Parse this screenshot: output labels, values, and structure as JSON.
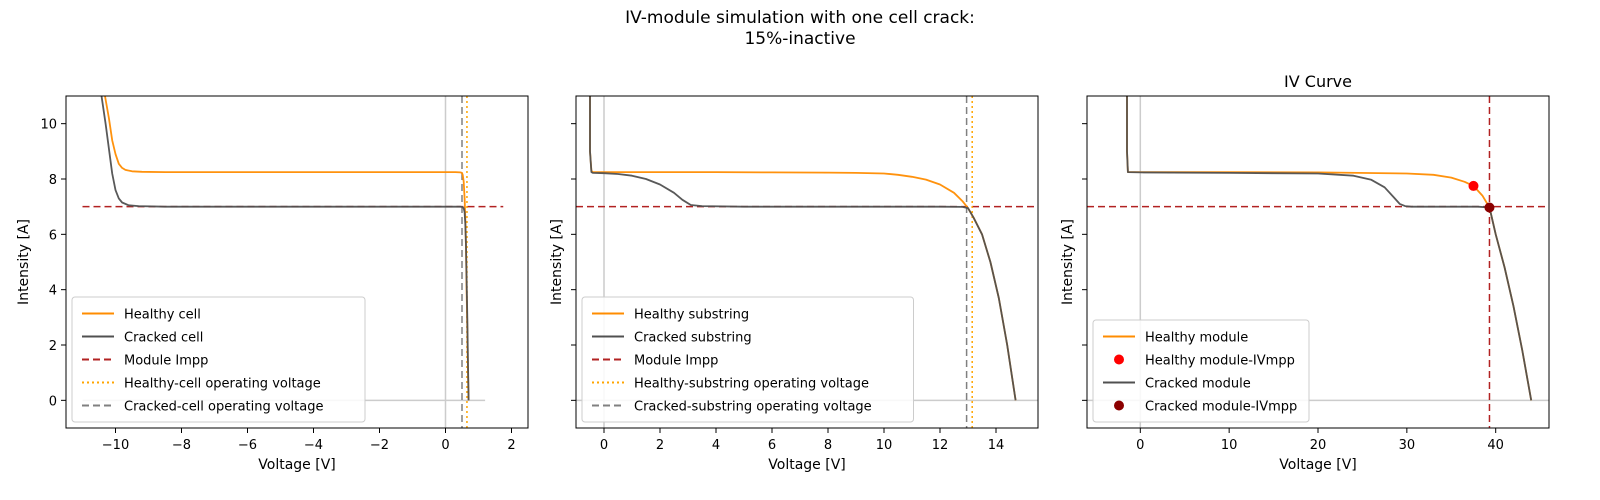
{
  "suptitle": {
    "line1": "IV-module simulation with one cell crack:",
    "line2": "15%-inactive"
  },
  "colors": {
    "healthy": "#ff8c00",
    "cracked": "#505050",
    "impp": "#b22222",
    "healthy_op_voltage": "#ffa500",
    "cracked_op_voltage": "#808080",
    "healthy_mpp_marker": "#ff0000",
    "cracked_mpp_marker": "#8b0000",
    "axis_zero_line": "#cccccc"
  },
  "chart_data": [
    {
      "type": "line",
      "title": "",
      "xlabel": "Voltage [V]",
      "ylabel": "Intensity [A]",
      "xlim": [
        -11.5,
        2.5
      ],
      "ylim": [
        -1,
        11
      ],
      "xticks": [
        -10,
        -8,
        -6,
        -4,
        -2,
        0,
        2
      ],
      "yticks": [
        0,
        2,
        4,
        6,
        8,
        10
      ],
      "zero_lines": {
        "x": 0,
        "y": 0,
        "y_line_x_range": [
          -11,
          1.2
        ]
      },
      "series": [
        {
          "name": "Healthy cell",
          "style": "solid",
          "color": "#ff8c00",
          "x": [
            -10.35,
            -10.2,
            -10.1,
            -10.0,
            -9.9,
            -9.8,
            -9.7,
            -9.5,
            -9.2,
            -8.5,
            -6,
            -2,
            0,
            0.3,
            0.45,
            0.5,
            0.52,
            0.55,
            0.58,
            0.6,
            0.62,
            0.64,
            0.66,
            0.68,
            0.7
          ],
          "y": [
            11.2,
            10.2,
            9.4,
            8.9,
            8.55,
            8.4,
            8.33,
            8.28,
            8.26,
            8.25,
            8.25,
            8.25,
            8.25,
            8.25,
            8.24,
            8.22,
            8.15,
            7.9,
            7.3,
            6.6,
            5.5,
            4.0,
            2.6,
            1.2,
            0.0
          ]
        },
        {
          "name": "Cracked cell",
          "style": "solid",
          "color": "#505050",
          "x": [
            -10.45,
            -10.3,
            -10.2,
            -10.1,
            -10.0,
            -9.9,
            -9.8,
            -9.6,
            -9.3,
            -8.5,
            -6,
            -2,
            0,
            0.3,
            0.45,
            0.5,
            0.55,
            0.58,
            0.6,
            0.62,
            0.64,
            0.66,
            0.68,
            0.7
          ],
          "y": [
            11.2,
            10.0,
            9.1,
            8.2,
            7.6,
            7.3,
            7.15,
            7.05,
            7.02,
            7.0,
            7.0,
            7.0,
            7.0,
            7.0,
            7.0,
            6.99,
            6.95,
            6.8,
            6.4,
            5.6,
            4.4,
            3.0,
            1.5,
            0.0
          ]
        }
      ],
      "hlines": [
        {
          "name": "Module Impp",
          "y": 7.0,
          "xrange": [
            -11,
            1.75
          ],
          "style": "dashed",
          "color": "#b22222"
        }
      ],
      "vlines": [
        {
          "name": "Healthy-cell operating voltage",
          "x": 0.65,
          "style": "dotted",
          "color": "#ffa500"
        },
        {
          "name": "Cracked-cell operating voltage",
          "x": 0.5,
          "style": "dashed",
          "color": "#808080"
        }
      ],
      "legend": {
        "position": "lower-left",
        "entries": [
          {
            "label": "Healthy cell",
            "kind": "line",
            "style": "solid",
            "color": "#ff8c00"
          },
          {
            "label": "Cracked cell",
            "kind": "line",
            "style": "solid",
            "color": "#505050"
          },
          {
            "label": "Module Impp",
            "kind": "line",
            "style": "dashed",
            "color": "#b22222"
          },
          {
            "label": "Healthy-cell operating voltage",
            "kind": "line",
            "style": "dotted",
            "color": "#ffa500"
          },
          {
            "label": "Cracked-cell operating voltage",
            "kind": "line",
            "style": "dashed",
            "color": "#808080"
          }
        ]
      },
      "grid": false
    },
    {
      "type": "line",
      "title": "",
      "xlabel": "Voltage [V]",
      "ylabel": "Intensity [A]",
      "xlim": [
        -1,
        15.5
      ],
      "ylim": [
        -1,
        11
      ],
      "xticks": [
        0,
        2,
        4,
        6,
        8,
        10,
        12,
        14
      ],
      "yticks": [
        0,
        2,
        4,
        6,
        8,
        10
      ],
      "ytick_labels_shown": false,
      "zero_lines": {
        "x": 0,
        "y": 0,
        "y_line_x_range": [
          -1,
          15.5
        ]
      },
      "series": [
        {
          "name": "Healthy substring",
          "style": "solid",
          "color": "#ff8c00",
          "x": [
            -0.5,
            -0.5,
            -0.45,
            -0.4,
            0,
            2,
            4,
            6,
            8,
            9,
            10,
            10.5,
            11,
            11.5,
            12,
            12.5,
            12.8,
            13.0,
            13.2,
            13.5,
            13.8,
            14.1,
            14.4,
            14.7
          ],
          "y": [
            11.2,
            9.0,
            8.3,
            8.25,
            8.25,
            8.25,
            8.25,
            8.24,
            8.23,
            8.22,
            8.2,
            8.15,
            8.08,
            7.98,
            7.8,
            7.5,
            7.2,
            6.95,
            6.6,
            6.0,
            5.0,
            3.7,
            2.0,
            0.0
          ]
        },
        {
          "name": "Cracked substring",
          "style": "solid",
          "color": "#505050",
          "x": [
            -0.5,
            -0.5,
            -0.45,
            -0.4,
            0,
            0.5,
            1.0,
            1.5,
            2.0,
            2.5,
            2.8,
            3.1,
            3.5,
            5,
            8,
            10,
            12,
            12.8,
            13.0,
            13.2,
            13.5,
            13.8,
            14.1,
            14.4,
            14.7
          ],
          "y": [
            11.2,
            9.0,
            8.25,
            8.22,
            8.21,
            8.18,
            8.12,
            8.0,
            7.8,
            7.5,
            7.25,
            7.06,
            7.02,
            7.0,
            7.0,
            7.0,
            7.0,
            6.99,
            6.95,
            6.6,
            6.0,
            5.0,
            3.7,
            2.0,
            0.0
          ]
        }
      ],
      "hlines": [
        {
          "name": "Module Impp",
          "y": 7.0,
          "xrange": [
            -1,
            15.5
          ],
          "style": "dashed",
          "color": "#b22222"
        }
      ],
      "vlines": [
        {
          "name": "Healthy-substring operating voltage",
          "x": 13.15,
          "style": "dotted",
          "color": "#ffa500"
        },
        {
          "name": "Cracked-substring operating voltage",
          "x": 12.95,
          "style": "dashed",
          "color": "#808080"
        }
      ],
      "legend": {
        "position": "lower-left",
        "entries": [
          {
            "label": "Healthy substring",
            "kind": "line",
            "style": "solid",
            "color": "#ff8c00"
          },
          {
            "label": "Cracked substring",
            "kind": "line",
            "style": "solid",
            "color": "#505050"
          },
          {
            "label": "Module Impp",
            "kind": "line",
            "style": "dashed",
            "color": "#b22222"
          },
          {
            "label": "Healthy-substring operating voltage",
            "kind": "line",
            "style": "dotted",
            "color": "#ffa500"
          },
          {
            "label": "Cracked-substring operating voltage",
            "kind": "line",
            "style": "dashed",
            "color": "#808080"
          }
        ]
      },
      "grid": false
    },
    {
      "type": "line",
      "title": "IV Curve",
      "xlabel": "Voltage [V]",
      "ylabel": "Intensity [A]",
      "xlim": [
        -6,
        46
      ],
      "ylim": [
        -1,
        11
      ],
      "xticks": [
        0,
        10,
        20,
        30,
        40
      ],
      "yticks": [
        0,
        2,
        4,
        6,
        8,
        10
      ],
      "ytick_labels_shown": false,
      "zero_lines": {
        "x": 0,
        "y": 0,
        "y_line_x_range": [
          -6,
          46
        ]
      },
      "series": [
        {
          "name": "Healthy module",
          "style": "solid",
          "color": "#ff8c00",
          "x": [
            -1.5,
            -1.5,
            -1.4,
            0,
            10,
            20,
            30,
            33,
            35,
            36.5,
            37.5,
            38.5,
            39.3,
            40,
            41,
            42,
            43,
            44
          ],
          "y": [
            11.2,
            9.0,
            8.25,
            8.25,
            8.25,
            8.24,
            8.2,
            8.15,
            8.05,
            7.9,
            7.75,
            7.4,
            6.97,
            6.0,
            4.8,
            3.4,
            1.8,
            0.0
          ]
        },
        {
          "name": "Cracked module",
          "style": "solid",
          "color": "#505050",
          "x": [
            -1.5,
            -1.5,
            -1.4,
            0,
            10,
            20,
            24,
            26,
            27.5,
            28.5,
            29.2,
            29.8,
            30.5,
            35,
            38,
            39.3,
            40,
            41,
            42,
            43,
            44
          ],
          "y": [
            11.2,
            9.0,
            8.25,
            8.24,
            8.22,
            8.2,
            8.12,
            7.97,
            7.7,
            7.35,
            7.1,
            7.02,
            7.0,
            7.0,
            7.0,
            6.97,
            6.0,
            4.8,
            3.4,
            1.8,
            0.0
          ]
        }
      ],
      "points": [
        {
          "name": "Healthy module-IVmpp",
          "x": 37.5,
          "y": 7.75,
          "color": "#ff0000"
        },
        {
          "name": "Cracked module-IVmpp",
          "x": 39.3,
          "y": 6.97,
          "color": "#8b0000"
        }
      ],
      "hlines": [
        {
          "name": "Impp",
          "y": 7.0,
          "xrange": [
            -6,
            46
          ],
          "style": "dashed",
          "color": "#b22222"
        }
      ],
      "vlines": [
        {
          "name": "Vmpp",
          "x": 39.3,
          "style": "dashed",
          "color": "#b22222"
        }
      ],
      "legend": {
        "position": "lower-left",
        "entries": [
          {
            "label": "Healthy module",
            "kind": "line",
            "style": "solid",
            "color": "#ff8c00"
          },
          {
            "label": "Healthy module-IVmpp",
            "kind": "marker",
            "color": "#ff0000"
          },
          {
            "label": "Cracked module",
            "kind": "line",
            "style": "solid",
            "color": "#505050"
          },
          {
            "label": "Cracked module-IVmpp",
            "kind": "marker",
            "color": "#8b0000"
          }
        ]
      },
      "grid": false
    }
  ]
}
